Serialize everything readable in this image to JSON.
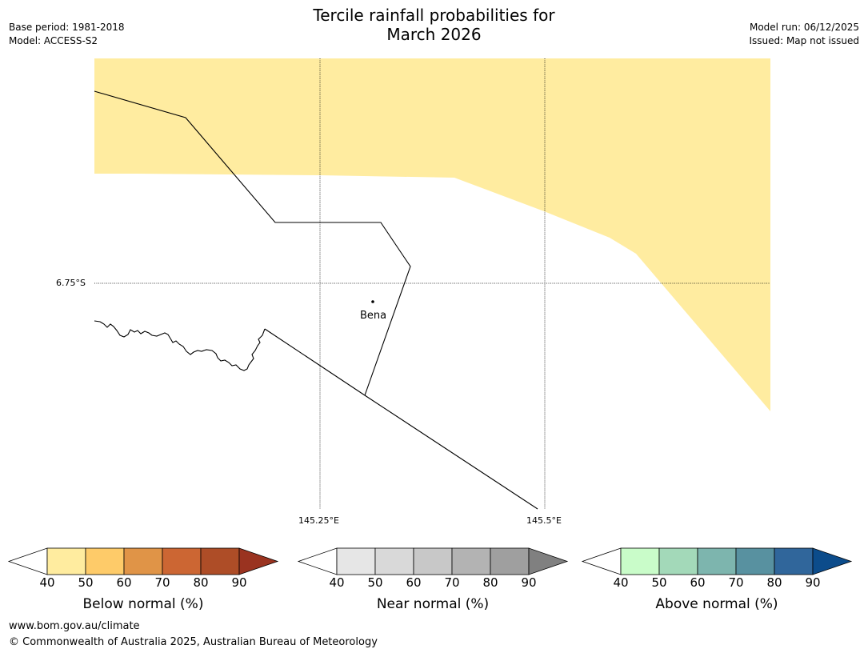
{
  "header": {
    "title_line1": "Tercile rainfall probabilities for",
    "title_line2": "March 2026",
    "base_period": "Base period: 1981-2018",
    "model": "Model: ACCESS-S2",
    "model_run": "Model run: 06/12/2025",
    "issued": "Issued: Map not issued"
  },
  "map": {
    "lat_label": "6.75°S",
    "lon_labels": [
      "145.25°E",
      "145.5°E"
    ],
    "place": "Bena",
    "shading_color": "#ffeca0"
  },
  "colorbars": [
    {
      "title": "Below normal (%)",
      "ticks": [
        "40",
        "50",
        "60",
        "70",
        "80",
        "90"
      ],
      "colors": [
        "#ffffff",
        "#ffec9f",
        "#fecb69",
        "#e09447",
        "#cc6633",
        "#ae4d27",
        "#9a3320"
      ]
    },
    {
      "title": "Near normal (%)",
      "ticks": [
        "40",
        "50",
        "60",
        "70",
        "80",
        "90"
      ],
      "colors": [
        "#ffffff",
        "#e6e6e6",
        "#d9d9d9",
        "#c8c8c8",
        "#b3b3b3",
        "#9f9f9f",
        "#808080"
      ]
    },
    {
      "title": "Above normal (%)",
      "ticks": [
        "40",
        "50",
        "60",
        "70",
        "80",
        "90"
      ],
      "colors": [
        "#ffffff",
        "#c9fcc9",
        "#a3d9b9",
        "#7db5ae",
        "#5891a0",
        "#30669b",
        "#0c4c8b"
      ]
    }
  ],
  "footer": {
    "url": "www.bom.gov.au/climate",
    "copyright": "© Commonwealth of Australia 2025, Australian Bureau of Meteorology"
  }
}
